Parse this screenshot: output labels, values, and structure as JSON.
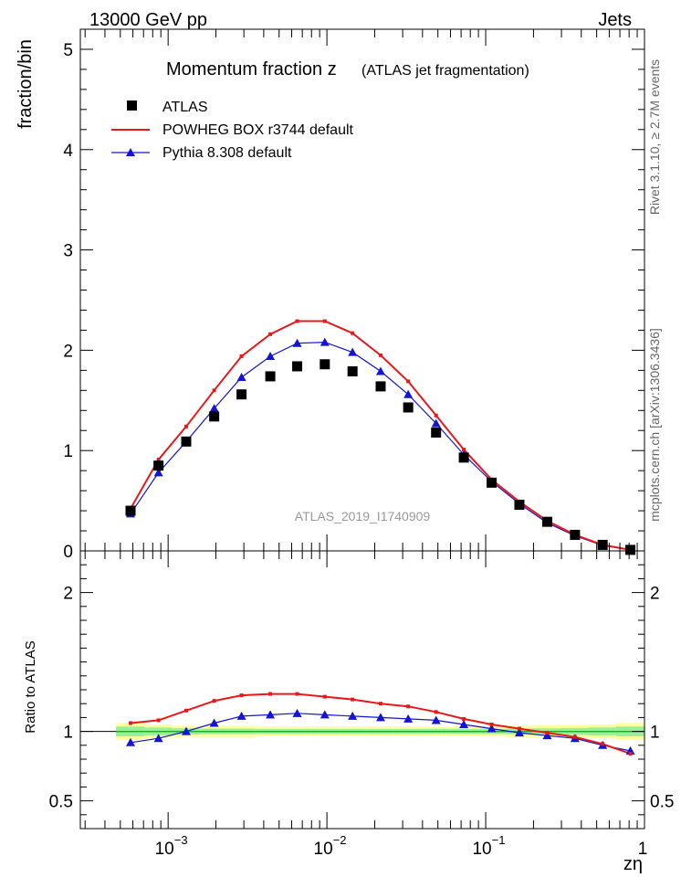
{
  "header": {
    "left": "13000 GeV pp",
    "right": "Jets"
  },
  "side_labels": {
    "rivet": "Rivet 3.1.10, ≥ 2.7M events",
    "mcplots": "mcplots.cern.ch [arXiv:1306.3436]"
  },
  "chart_data": {
    "type": "scatter",
    "title": "Momentum fraction z",
    "subtitle": "(ATLAS jet fragmentation)",
    "watermark": "ATLAS_2019_I1740909",
    "xlabel": "zη",
    "x_scale": "log",
    "xlim": [
      0.00028,
      1.0
    ],
    "x_ticks": [
      {
        "value": 0.001,
        "base": "10",
        "exp": "−3"
      },
      {
        "value": 0.01,
        "base": "10",
        "exp": "−2"
      },
      {
        "value": 0.1,
        "base": "10",
        "exp": "−1"
      },
      {
        "value": 1,
        "base": "1",
        "exp": ""
      }
    ],
    "main": {
      "ylabel": "fraction/bin",
      "ylim": [
        0,
        5.2
      ],
      "y_ticks": [
        {
          "value": 0,
          "label": "0"
        },
        {
          "value": 1,
          "label": "1"
        },
        {
          "value": 2,
          "label": "2"
        },
        {
          "value": 3,
          "label": "3"
        },
        {
          "value": 4,
          "label": "4"
        },
        {
          "value": 5,
          "label": "5"
        }
      ]
    },
    "ratio": {
      "ylabel": "Ratio to ATLAS",
      "ylim": [
        0.3,
        2.3
      ],
      "y_ticks": [
        {
          "value": 0.5,
          "label": "0.5"
        },
        {
          "value": 1,
          "label": "1"
        },
        {
          "value": 2,
          "label": "2"
        }
      ]
    },
    "x": [
      0.00058,
      0.00087,
      0.0013,
      0.00195,
      0.0029,
      0.0044,
      0.0065,
      0.0097,
      0.0145,
      0.0218,
      0.0325,
      0.0487,
      0.0728,
      0.109,
      0.163,
      0.244,
      0.365,
      0.545,
      0.815
    ],
    "band_edges": [
      0.00047,
      0.00071,
      0.00106,
      0.00159,
      0.00237,
      0.00355,
      0.0053,
      0.0079,
      0.0119,
      0.0177,
      0.0265,
      0.0396,
      0.0593,
      0.0886,
      0.1325,
      0.198,
      0.296,
      0.443,
      0.663,
      0.991
    ],
    "band_yellow_halfwidth": [
      0.06,
      0.05,
      0.04,
      0.04,
      0.04,
      0.035,
      0.035,
      0.035,
      0.035,
      0.035,
      0.035,
      0.035,
      0.035,
      0.035,
      0.04,
      0.045,
      0.045,
      0.05,
      0.06
    ],
    "band_green_halfwidth": [
      0.035,
      0.028,
      0.022,
      0.02,
      0.02,
      0.018,
      0.018,
      0.018,
      0.018,
      0.018,
      0.018,
      0.018,
      0.018,
      0.018,
      0.02,
      0.022,
      0.025,
      0.028,
      0.035
    ],
    "series": [
      {
        "name": "ATLAS",
        "marker": "square",
        "color": "#000000",
        "values": [
          0.4,
          0.85,
          1.09,
          1.34,
          1.56,
          1.74,
          1.84,
          1.86,
          1.79,
          1.64,
          1.43,
          1.18,
          0.93,
          0.68,
          0.46,
          0.29,
          0.16,
          0.06,
          0.01
        ]
      },
      {
        "name": "POWHEG BOX r3744 default",
        "marker": "line",
        "color": "#e8181a",
        "values": [
          0.42,
          0.91,
          1.24,
          1.6,
          1.94,
          2.16,
          2.29,
          2.29,
          2.17,
          1.95,
          1.69,
          1.35,
          1.01,
          0.71,
          0.49,
          0.3,
          0.16,
          0.06,
          0.01
        ],
        "ratio": [
          1.06,
          1.08,
          1.15,
          1.22,
          1.26,
          1.27,
          1.27,
          1.25,
          1.23,
          1.2,
          1.18,
          1.14,
          1.09,
          1.05,
          1.02,
          0.99,
          0.96,
          0.91,
          0.84
        ]
      },
      {
        "name": "Pythia 8.308 default",
        "marker": "triangle",
        "color": "#1414d2",
        "values": [
          0.37,
          0.78,
          1.09,
          1.42,
          1.73,
          1.94,
          2.07,
          2.08,
          1.98,
          1.79,
          1.56,
          1.27,
          0.96,
          0.69,
          0.47,
          0.28,
          0.15,
          0.055,
          0.01
        ],
        "ratio": [
          0.92,
          0.95,
          1.0,
          1.06,
          1.11,
          1.12,
          1.13,
          1.12,
          1.11,
          1.1,
          1.09,
          1.08,
          1.05,
          1.02,
          0.99,
          0.97,
          0.95,
          0.9,
          0.86
        ]
      }
    ]
  }
}
